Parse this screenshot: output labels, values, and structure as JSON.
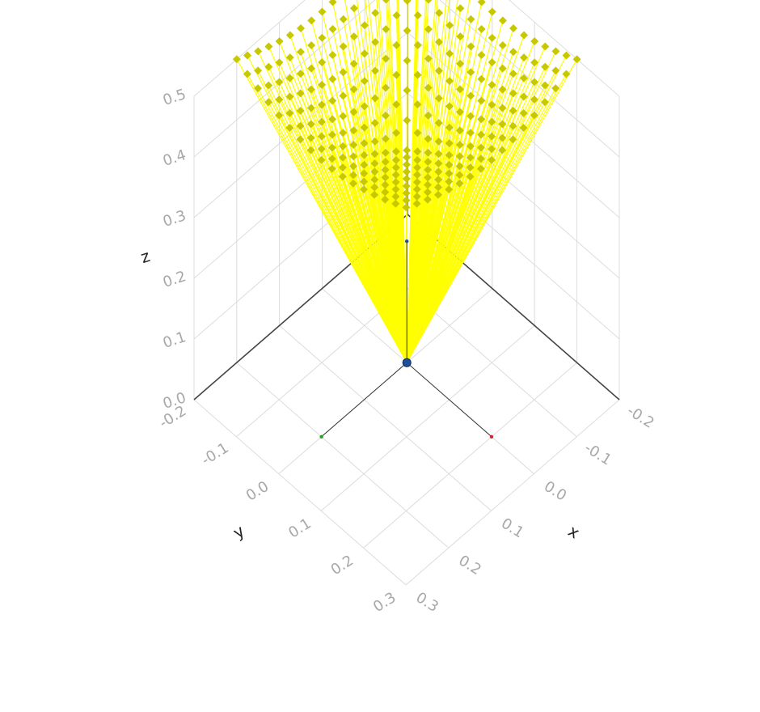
{
  "chart_data": {
    "type": "3d-quiver",
    "title": "",
    "axes": {
      "x": {
        "label": "x",
        "range": [
          -0.2,
          0.3
        ],
        "ticks": [
          "-0.2",
          "-0.1",
          "0.0",
          "0.1",
          "0.2",
          "0.3"
        ]
      },
      "y": {
        "label": "y",
        "range": [
          -0.2,
          0.3
        ],
        "ticks": [
          "-0.2",
          "-0.1",
          "0.0",
          "0.1",
          "0.2",
          "0.3"
        ]
      },
      "z": {
        "label": "z",
        "range": [
          0.0,
          0.5
        ],
        "ticks": [
          "0.0",
          "0.1",
          "0.2",
          "0.3",
          "0.4",
          "0.5"
        ]
      }
    },
    "grid": true,
    "origin_marker": {
      "x": 0,
      "y": 0,
      "z": 0,
      "color": "#1f4e9a"
    },
    "frame_axes": [
      {
        "axis": "x",
        "length": 0.2,
        "color": "#2ca02c"
      },
      {
        "axis": "y",
        "length": 0.2,
        "color": "#d62728"
      },
      {
        "axis": "z",
        "length": 0.2,
        "color": "#1f4e9a"
      }
    ],
    "vector_field": {
      "origin": [
        0,
        0,
        0
      ],
      "grid_x": [
        -0.2,
        0.2,
        17
      ],
      "grid_y": [
        -0.2,
        0.2,
        17
      ],
      "tip_z": 0.5,
      "tip_z_center_drop": 0.15,
      "color": "#ffff00",
      "arrowhead_color": "#c8c800"
    }
  }
}
